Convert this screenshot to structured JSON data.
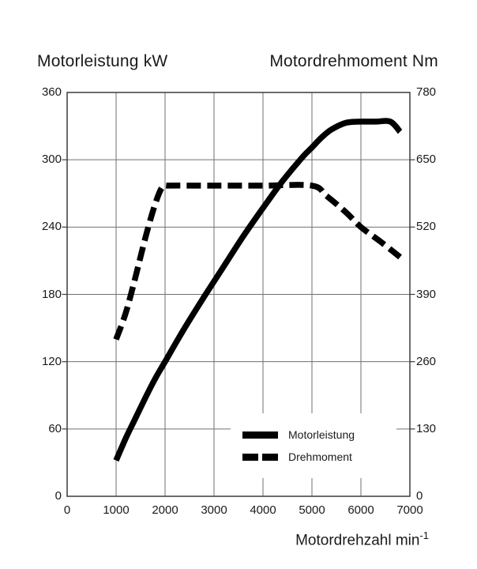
{
  "colors": {
    "background": "#ffffff",
    "curve": "#000000",
    "grid": "#707070",
    "axis_border": "#3c3c3c",
    "text": "#1a1a1a"
  },
  "chart_data": {
    "type": "line",
    "title_left_axis": "Motorleistung kW",
    "title_right_axis": "Motordrehmoment Nm",
    "xlabel_base": "Motordrehzahl min",
    "xlabel_sup": "-1",
    "x_range": [
      0,
      7000
    ],
    "y_left_range": [
      0,
      360
    ],
    "y_right_range": [
      0,
      780
    ],
    "x_ticks": [
      0,
      1000,
      2000,
      3000,
      4000,
      5000,
      6000,
      7000
    ],
    "y_left_ticks": [
      0,
      60,
      120,
      180,
      240,
      300,
      360
    ],
    "y_right_ticks": [
      0,
      130,
      260,
      390,
      520,
      650,
      780
    ],
    "grid": true,
    "legend": {
      "position": "inside-bottom-right",
      "items": [
        {
          "label": "Motorleistung",
          "style": "solid"
        },
        {
          "label": "Drehmoment",
          "style": "dashed"
        }
      ]
    },
    "series": [
      {
        "name": "Motorleistung",
        "unit": "kW",
        "axis": "left",
        "line_style": "solid",
        "points": [
          [
            1000,
            32
          ],
          [
            1200,
            52
          ],
          [
            1400,
            70
          ],
          [
            1600,
            88
          ],
          [
            1800,
            105
          ],
          [
            2000,
            120
          ],
          [
            2400,
            150
          ],
          [
            2800,
            178
          ],
          [
            3200,
            205
          ],
          [
            3600,
            232
          ],
          [
            4000,
            257
          ],
          [
            4400,
            281
          ],
          [
            4800,
            302
          ],
          [
            5000,
            311
          ],
          [
            5200,
            320
          ],
          [
            5400,
            327
          ],
          [
            5700,
            333
          ],
          [
            6000,
            334
          ],
          [
            6300,
            334
          ],
          [
            6600,
            334
          ],
          [
            6800,
            325
          ]
        ]
      },
      {
        "name": "Drehmoment",
        "unit": "Nm",
        "axis": "right",
        "line_style": "dashed",
        "points": [
          [
            1000,
            303
          ],
          [
            1200,
            355
          ],
          [
            1400,
            425
          ],
          [
            1600,
            500
          ],
          [
            1800,
            565
          ],
          [
            1950,
            598
          ],
          [
            2100,
            600
          ],
          [
            3000,
            600
          ],
          [
            4000,
            600
          ],
          [
            5000,
            600
          ],
          [
            5300,
            580
          ],
          [
            5700,
            548
          ],
          [
            6000,
            520
          ],
          [
            6400,
            492
          ],
          [
            6800,
            462
          ]
        ]
      }
    ]
  }
}
